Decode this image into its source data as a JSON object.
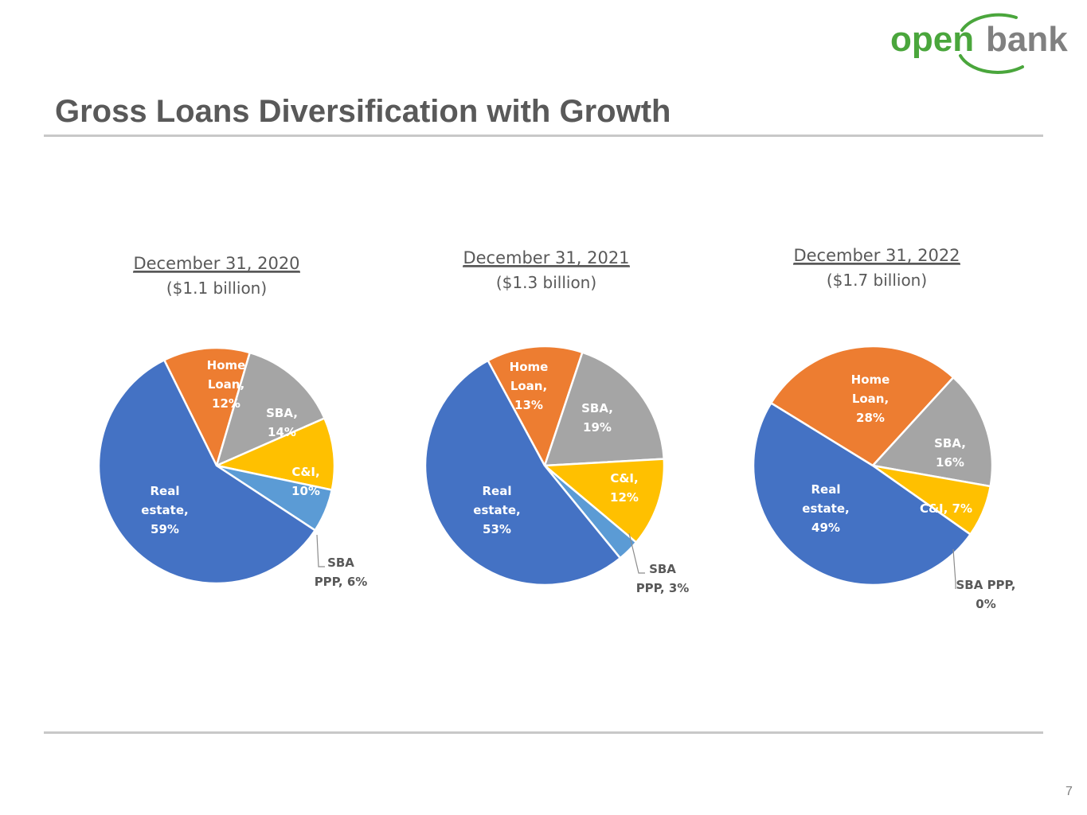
{
  "brand": {
    "logo_word_1": "open",
    "logo_word_2": "bank",
    "green": "#4aa63c",
    "gray": "#808080"
  },
  "title": "Gross Loans Diversification with Growth",
  "page_number": "7",
  "colors": {
    "Real estate": "#4472c4",
    "Home Loan": "#ed7d31",
    "SBA": "#a5a5a5",
    "C&I": "#ffc000",
    "SBA PPP": "#5b9bd5"
  },
  "chart_data": [
    {
      "type": "pie",
      "title": "December 31, 2020",
      "subtitle": "($1.1 billion)",
      "categories": [
        "Home Loan",
        "SBA",
        "C&I",
        "SBA PPP",
        "Real estate"
      ],
      "values": [
        12,
        14,
        10,
        6,
        59
      ],
      "labels": [
        [
          "Home",
          "Loan,",
          "12%"
        ],
        [
          "SBA,",
          "14%"
        ],
        [
          "C&I,",
          "10%"
        ],
        [
          "SBA",
          "PPP, 6%"
        ],
        [
          "Real",
          "estate,",
          "59%"
        ]
      ]
    },
    {
      "type": "pie",
      "title": "December 31, 2021",
      "subtitle": "($1.3 billion)",
      "categories": [
        "Home Loan",
        "SBA",
        "C&I",
        "SBA PPP",
        "Real estate"
      ],
      "values": [
        13,
        19,
        12,
        3,
        53
      ],
      "labels": [
        [
          "Home",
          "Loan,",
          "13%"
        ],
        [
          "SBA,",
          "19%"
        ],
        [
          "C&I,",
          "12%"
        ],
        [
          "SBA",
          "PPP, 3%"
        ],
        [
          "Real",
          "estate,",
          "53%"
        ]
      ]
    },
    {
      "type": "pie",
      "title": "December 31, 2022",
      "subtitle": "($1.7 billion)",
      "categories": [
        "Home Loan",
        "SBA",
        "C&I",
        "SBA PPP",
        "Real estate"
      ],
      "values": [
        28,
        16,
        7,
        0,
        49
      ],
      "labels": [
        [
          "Home",
          "Loan,",
          "28%"
        ],
        [
          "SBA,",
          "16%"
        ],
        [
          "C&I, 7%"
        ],
        [
          "SBA PPP,",
          "0%"
        ],
        [
          "Real",
          "estate,",
          "49%"
        ]
      ]
    }
  ]
}
